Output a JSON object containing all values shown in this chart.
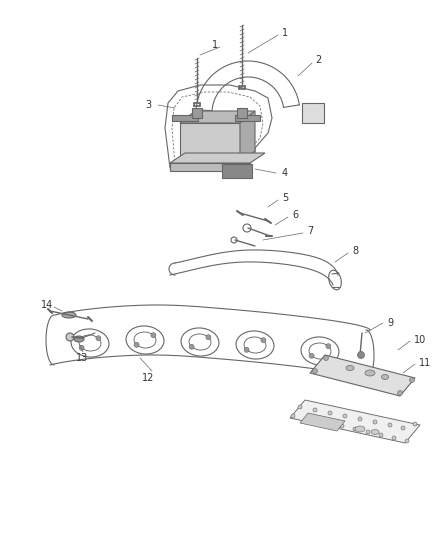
{
  "bg_color": "#ffffff",
  "lc": "#666666",
  "lc_dark": "#444444",
  "fig_width": 4.38,
  "fig_height": 5.33,
  "dpi": 100,
  "label_fs": 7,
  "label_color": "#333333"
}
